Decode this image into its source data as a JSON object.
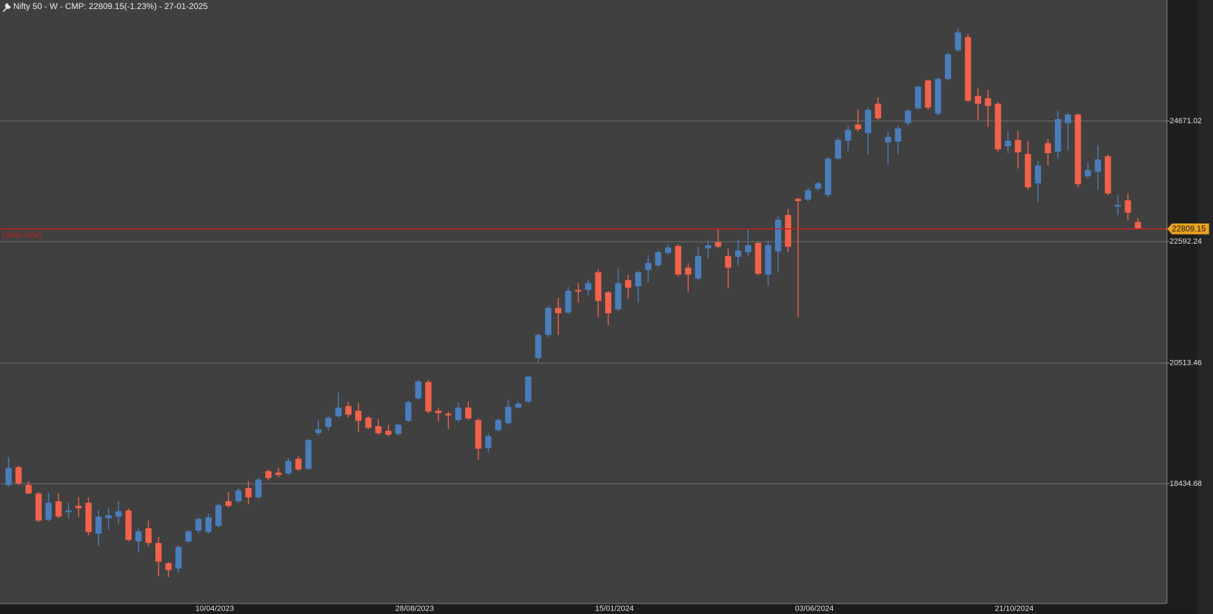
{
  "chart_data": {
    "type": "candlestick",
    "title": "Nifty 50 - W - CMP: 22809.15(-1.23%) - 27-01-2025",
    "categories": [
      null,
      null,
      null,
      null,
      null,
      null,
      null,
      null,
      null,
      null,
      null,
      null,
      null,
      null,
      null,
      null,
      null,
      null,
      null,
      "10/04/2023",
      null,
      null,
      null,
      null,
      null,
      null,
      null,
      null,
      null,
      null,
      null,
      null,
      null,
      null,
      null,
      null,
      null,
      null,
      null,
      "28/08/2023",
      null,
      null,
      null,
      null,
      null,
      null,
      null,
      null,
      null,
      null,
      null,
      null,
      null,
      null,
      null,
      null,
      null,
      null,
      null,
      "15/01/2024",
      null,
      null,
      null,
      null,
      null,
      null,
      null,
      null,
      null,
      null,
      null,
      null,
      null,
      null,
      null,
      null,
      null,
      null,
      null,
      "03/06/2024",
      null,
      null,
      null,
      null,
      null,
      null,
      null,
      null,
      null,
      null,
      null,
      null,
      null,
      null,
      null,
      null,
      null,
      null,
      null,
      "21/10/2024",
      null,
      null,
      null,
      null,
      null,
      null,
      null,
      null,
      null,
      null,
      null,
      null,
      null,
      null
    ],
    "open": [
      18406,
      18712,
      18406,
      18260,
      17808,
      18127,
      17940,
      18047,
      18100,
      17568,
      17834,
      17861,
      17967,
      17435,
      17661,
      17408,
      17063,
      16970,
      17435,
      17621,
      17595,
      17701,
      18127,
      18127,
      18353,
      18193,
      18645,
      18619,
      18605,
      18858,
      18685,
      19297,
      19403,
      19590,
      19763,
      19683,
      19563,
      19417,
      19337,
      19284,
      19510,
      19895,
      20175,
      19683,
      19630,
      19523,
      19736,
      19523,
      19044,
      19350,
      19470,
      19736,
      19842,
      20587,
      20986,
      21452,
      21372,
      21758,
      21758,
      22063,
      21718,
      21425,
      21930,
      21824,
      22103,
      22183,
      22396,
      22516,
      22143,
      21957,
      22476,
      22582,
      22343,
      22329,
      22409,
      22569,
      22024,
      22423,
      23048,
      23327,
      23314,
      23500,
      23393,
      24019,
      24325,
      24604,
      24457,
      24963,
      24298,
      24311,
      24630,
      24883,
      25362,
      24790,
      25388,
      25881,
      26107,
      25096,
      25056,
      24963,
      24231,
      24338,
      24098,
      23593,
      24285,
      24138,
      24630,
      24777,
      23713,
      23793,
      24059,
      23194,
      23301,
      22928
    ],
    "high": [
      18885,
      18738,
      18472,
      18286,
      18273,
      18260,
      18100,
      18193,
      18193,
      17967,
      18007,
      18127,
      18007,
      17661,
      17794,
      17515,
      17076,
      17369,
      17634,
      17848,
      17914,
      18087,
      18286,
      18353,
      18472,
      18526,
      18672,
      18699,
      18871,
      18898,
      19204,
      19523,
      19590,
      19989,
      19829,
      19816,
      19590,
      19536,
      19443,
      19457,
      19856,
      20215,
      20215,
      19736,
      19670,
      19829,
      19842,
      19550,
      19297,
      19550,
      19869,
      19842,
      20281,
      21013,
      21478,
      21624,
      21811,
      21877,
      21930,
      22117,
      21744,
      22130,
      22024,
      22090,
      22343,
      22449,
      22542,
      22542,
      22223,
      22502,
      22622,
      22795,
      22476,
      22622,
      22795,
      22595,
      22609,
      23021,
      23154,
      23340,
      23513,
      23620,
      24045,
      24378,
      24577,
      24856,
      24896,
      25069,
      24484,
      24577,
      24870,
      25269,
      25375,
      25415,
      25841,
      26253,
      26160,
      25229,
      25202,
      24990,
      24484,
      24497,
      24325,
      23979,
      24351,
      24843,
      24803,
      24790,
      23952,
      24245,
      24085,
      23393,
      23420,
      22995
    ],
    "low": [
      18379,
      18406,
      18246,
      17767,
      17781,
      17834,
      17834,
      17861,
      17541,
      17355,
      17634,
      17728,
      17435,
      17249,
      17355,
      16836,
      16823,
      16903,
      17408,
      17568,
      17568,
      17674,
      18020,
      18100,
      18073,
      18167,
      18486,
      18539,
      18579,
      18645,
      18672,
      19257,
      19337,
      19563,
      19563,
      19324,
      19363,
      19270,
      19244,
      19257,
      19483,
      19869,
      19643,
      19497,
      19363,
      19483,
      19523,
      18845,
      18965,
      19324,
      19443,
      19723,
      19816,
      20521,
      20946,
      20986,
      21345,
      21545,
      21664,
      21292,
      21146,
      21398,
      21611,
      21545,
      21891,
      22143,
      22369,
      21997,
      21731,
      21930,
      22303,
      22476,
      21784,
      22183,
      22343,
      22010,
      21824,
      22063,
      22409,
      21292,
      23287,
      23460,
      23353,
      23992,
      24152,
      24484,
      24085,
      24684,
      23912,
      24085,
      24590,
      24856,
      24856,
      24750,
      25362,
      25854,
      24990,
      24684,
      24564,
      24138,
      24112,
      23846,
      23487,
      23260,
      23899,
      24019,
      24165,
      23527,
      23673,
      23487,
      23393,
      23048,
      22955,
      22795
    ],
    "close": [
      18699,
      18432,
      18260,
      17794,
      18100,
      17861,
      17967,
      18007,
      17595,
      17861,
      17887,
      17954,
      17462,
      17608,
      17408,
      17089,
      16943,
      17342,
      17608,
      17821,
      17848,
      18060,
      18047,
      18313,
      18193,
      18499,
      18526,
      18579,
      18818,
      18672,
      19178,
      19363,
      19563,
      19736,
      19616,
      19510,
      19390,
      19297,
      19270,
      19443,
      19829,
      20188,
      19670,
      19643,
      19603,
      19736,
      19550,
      19031,
      19244,
      19523,
      19749,
      19802,
      20268,
      20986,
      21452,
      21359,
      21744,
      21731,
      21877,
      21571,
      21359,
      21877,
      21797,
      22063,
      22223,
      22409,
      22489,
      22024,
      22024,
      22343,
      22529,
      22502,
      22143,
      22436,
      22529,
      22037,
      22529,
      22968,
      22502,
      23287,
      23473,
      23593,
      24019,
      24338,
      24511,
      24524,
      24856,
      24710,
      24391,
      24537,
      24843,
      25255,
      24896,
      25388,
      25814,
      26187,
      25016,
      24963,
      24923,
      24178,
      24325,
      24125,
      23527,
      23899,
      24112,
      24697,
      24777,
      23580,
      23819,
      24005,
      23420,
      23221,
      23088,
      22809.15
    ],
    "up_color": "#4a7dbb",
    "down_color": "#f2624a",
    "ylim": [
      16373.7,
      26745.4
    ],
    "yticks": [
      18434.68,
      20513.46,
      22592.24,
      24671.02
    ],
    "grid": true,
    "last_price_label": "22809.15",
    "price_label_color": "#e8a21f",
    "cmp_line_label": "22809.15(W)",
    "cmp_line_color": "#c0241c"
  }
}
